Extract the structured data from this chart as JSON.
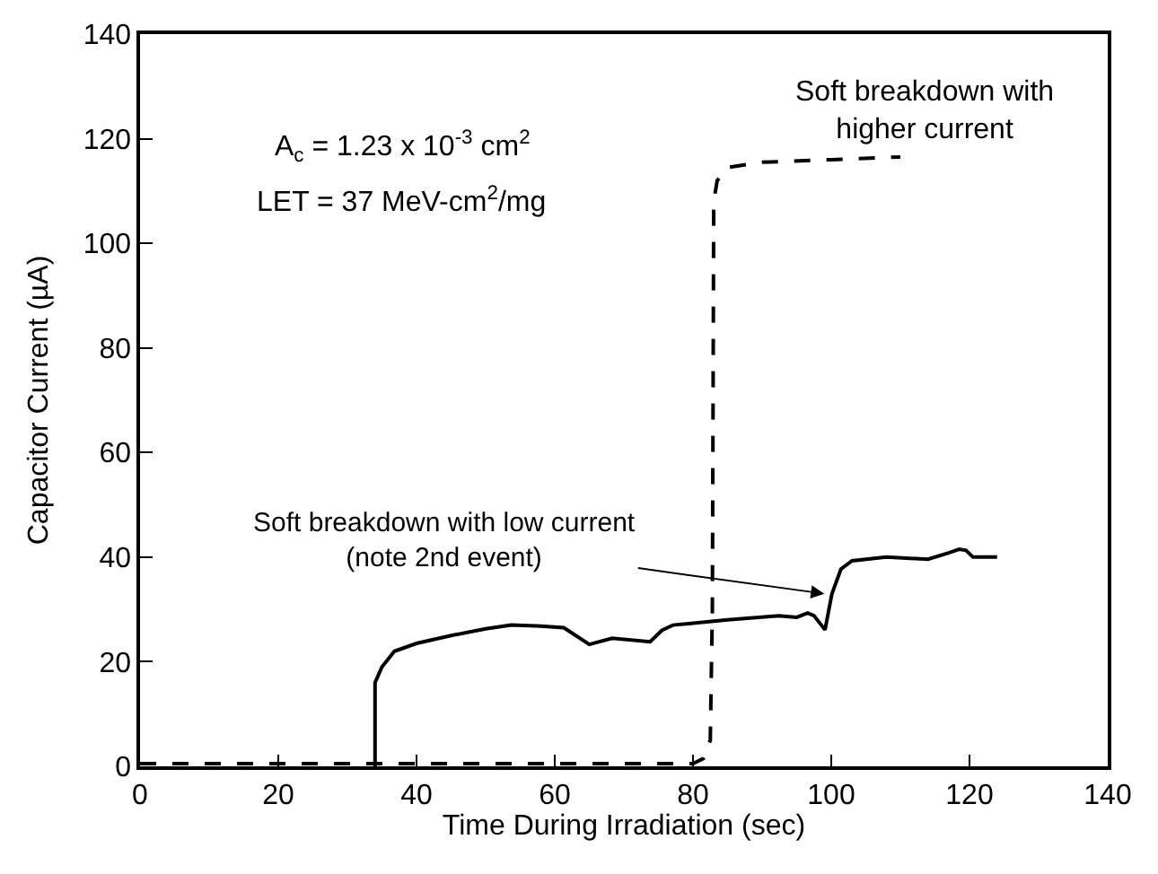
{
  "chart_data": {
    "type": "line",
    "xlabel": "Time During Irradiation (sec)",
    "ylabel": "Capacitor Current (µA)",
    "series": [
      {
        "color": "#000000",
        "line_style": "solid",
        "x": [
          34,
          34,
          35,
          36.8,
          40,
          45,
          50,
          53.7,
          58,
          61.3,
          65,
          68.3,
          73.8,
          75.5,
          77.1,
          85,
          92.4,
          95,
          96.6,
          97.5,
          99.1,
          100.1,
          101.4,
          103,
          108,
          114,
          117,
          118.5,
          119.5,
          120.5,
          122,
          124
        ],
        "values": [
          0,
          16,
          19,
          22,
          23.5,
          25,
          26.3,
          27,
          26.8,
          26.5,
          23.3,
          24.5,
          23.8,
          26,
          27,
          28,
          28.8,
          28.5,
          29.3,
          28.8,
          26.1,
          33,
          37.7,
          39.3,
          40,
          39.6,
          40.8,
          41.5,
          41.3,
          40,
          40,
          40
        ]
      },
      {
        "color": "#000000",
        "line_style": "dashed",
        "x": [
          0,
          80,
          81.5,
          82.5,
          82.8,
          83,
          83.5,
          85,
          90,
          100,
          110
        ],
        "values": [
          0.5,
          0.5,
          1.5,
          5,
          30,
          108,
          112,
          114.5,
          115.5,
          116,
          116.5
        ]
      }
    ],
    "xlim": [
      0,
      140
    ],
    "xticks": [
      0,
      20,
      40,
      60,
      80,
      100,
      120,
      140
    ],
    "ylim": [
      0,
      140
    ],
    "yticks": [
      0,
      20,
      40,
      60,
      80,
      100,
      120,
      140
    ],
    "annotations": [
      "A$_{c}$ = 1.23 x 10$^{-3}$ cm$^{2}$",
      "LET = 37 MeV-cm$^{2}$/mg",
      "Soft breakdown with\nhigher current",
      {
        "text": "Soft breakdown with low current\n(note 2nd event)",
        "x": 99,
        "y": 33
      }
    ],
    "marker": "none"
  }
}
